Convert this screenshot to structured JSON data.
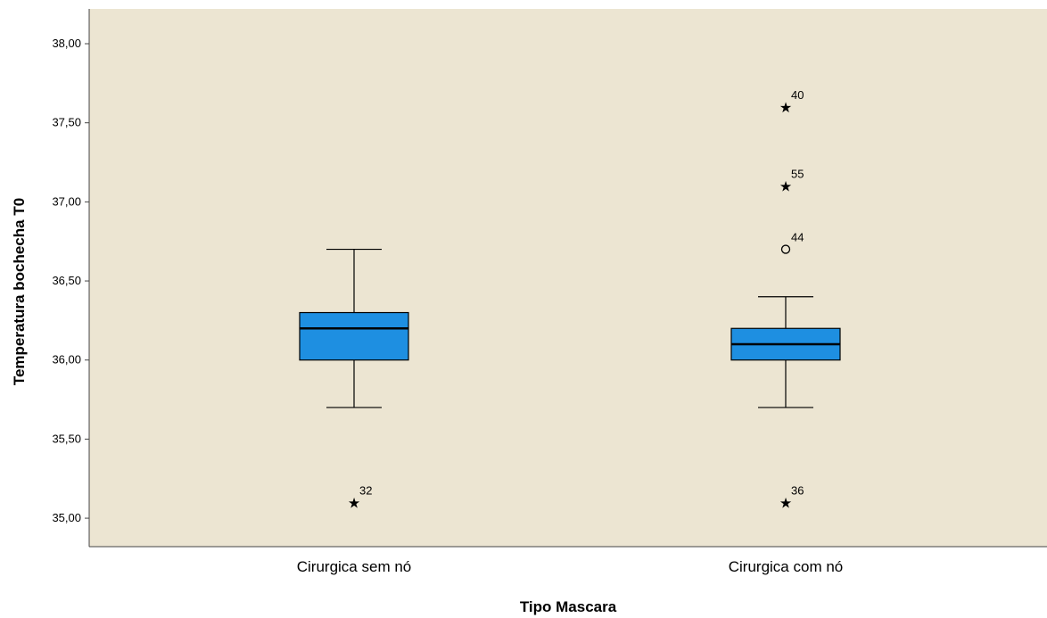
{
  "chart_data": {
    "type": "boxplot",
    "xlabel": "Tipo Mascara",
    "ylabel": "Temperatura bochecha T0",
    "ylim": [
      34.82,
      38.22
    ],
    "yticks": [
      "35,00",
      "35,50",
      "36,00",
      "36,50",
      "37,00",
      "37,50",
      "38,00"
    ],
    "ytick_values": [
      35.0,
      35.5,
      36.0,
      36.5,
      37.0,
      37.5,
      38.0
    ],
    "plot_background": "#ECE5D2",
    "box_color": "#1E8FE1",
    "grid": false,
    "categories": [
      "Cirurgica sem nó",
      "Cirurgica com nó"
    ],
    "boxes": [
      {
        "category": "Cirurgica sem nó",
        "whisker_low": 35.7,
        "q1": 36.0,
        "median": 36.2,
        "q3": 36.3,
        "whisker_high": 36.7,
        "outliers": [
          {
            "label": "32",
            "value": 35.1,
            "marker": "star"
          }
        ]
      },
      {
        "category": "Cirurgica com nó",
        "whisker_low": 35.7,
        "q1": 36.0,
        "median": 36.1,
        "q3": 36.2,
        "whisker_high": 36.4,
        "outliers": [
          {
            "label": "40",
            "value": 37.6,
            "marker": "star"
          },
          {
            "label": "55",
            "value": 37.1,
            "marker": "star"
          },
          {
            "label": "44",
            "value": 36.7,
            "marker": "circle"
          },
          {
            "label": "36",
            "value": 35.1,
            "marker": "star"
          }
        ]
      }
    ]
  }
}
